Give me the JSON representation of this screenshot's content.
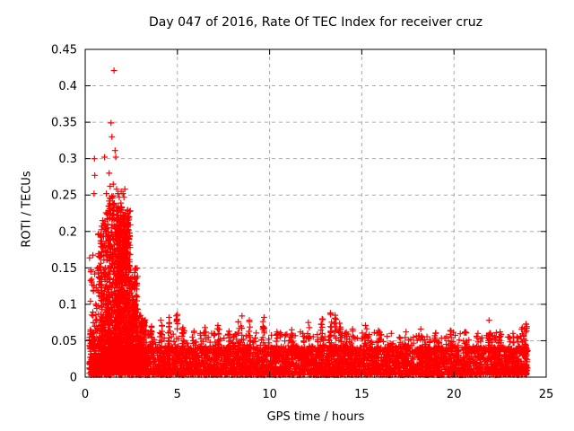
{
  "chart_data": {
    "type": "scatter",
    "title": "Day 047 of 2016, Rate Of TEC Index for receiver cruz",
    "xlabel": "GPS time / hours",
    "ylabel": "ROTI / TECUs",
    "xlim": [
      0,
      25
    ],
    "ylim": [
      0,
      0.45
    ],
    "xticks": [
      0,
      5,
      10,
      15,
      20,
      25
    ],
    "xtick_labels": [
      "0",
      "5",
      "10",
      "15",
      "20",
      "25"
    ],
    "yticks": [
      0,
      0.05,
      0.1,
      0.15,
      0.2,
      0.25,
      0.3,
      0.35,
      0.4,
      0.45
    ],
    "ytick_labels": [
      "0",
      "0.05",
      "0.1",
      "0.15",
      "0.2",
      "0.25",
      "0.3",
      "0.35",
      "0.4",
      "0.45"
    ],
    "grid": {
      "visible": true,
      "style": "dashed",
      "color": "#aaaaaa"
    },
    "marker": {
      "shape": "plus",
      "color": "#ff0000",
      "size": 7
    },
    "legend": null,
    "description": "Dense ROTI time series: quiet baseline 0-0.05 TECU across all 24 hours; strong ionospheric disturbance burst between ~0.7 and 3.2 h reaching 0.42 TECU; intermittent small spikes of 0.05-0.09 TECU through the rest of the day; data span ~0.2-24.0 h.",
    "generation": {
      "seed": 47,
      "baseline": {
        "x0": 0.22,
        "x1": 24.0,
        "y0": 0.003,
        "y1": 0.042,
        "n": 3800,
        "bias": 1.5
      },
      "bands": [
        {
          "x0": 0.22,
          "x1": 24.0,
          "y0": 0.035,
          "y1": 0.062,
          "n": 550,
          "bias": 2.0
        }
      ],
      "burst_segments": [
        {
          "x0": 0.22,
          "x1": 0.7,
          "y0": 0.01,
          "y1": 0.175,
          "n": 90,
          "bias": 2.6
        },
        {
          "x0": 0.7,
          "x1": 1.1,
          "y0": 0.01,
          "y1": 0.215,
          "n": 260,
          "bias": 2.2
        },
        {
          "x0": 1.1,
          "x1": 1.55,
          "y0": 0.01,
          "y1": 0.25,
          "n": 380,
          "bias": 2.2
        },
        {
          "x0": 1.55,
          "x1": 2.05,
          "y0": 0.01,
          "y1": 0.24,
          "n": 520,
          "bias": 2.0
        },
        {
          "x0": 2.05,
          "x1": 2.45,
          "y0": 0.01,
          "y1": 0.23,
          "n": 420,
          "bias": 2.2
        },
        {
          "x0": 2.45,
          "x1": 2.85,
          "y0": 0.01,
          "y1": 0.15,
          "n": 280,
          "bias": 2.2
        },
        {
          "x0": 2.85,
          "x1": 3.3,
          "y0": 0.01,
          "y1": 0.085,
          "n": 200,
          "bias": 1.8
        },
        {
          "x0": 1.8,
          "x1": 2.3,
          "y0": 0.13,
          "y1": 0.225,
          "n": 160,
          "bias": 1.2
        }
      ],
      "spikes": [
        [
          3.6,
          0.07,
          12
        ],
        [
          4.1,
          0.078,
          14
        ],
        [
          4.55,
          0.082,
          14
        ],
        [
          5.0,
          0.086,
          16
        ],
        [
          5.3,
          0.068,
          10
        ],
        [
          5.9,
          0.063,
          8
        ],
        [
          6.5,
          0.068,
          10
        ],
        [
          7.2,
          0.071,
          12
        ],
        [
          7.8,
          0.063,
          8
        ],
        [
          8.3,
          0.076,
          12
        ],
        [
          8.5,
          0.084,
          10
        ],
        [
          8.9,
          0.078,
          10
        ],
        [
          9.7,
          0.082,
          12
        ],
        [
          10.4,
          0.062,
          8
        ],
        [
          11.2,
          0.065,
          8
        ],
        [
          11.8,
          0.06,
          6
        ],
        [
          12.1,
          0.075,
          10
        ],
        [
          12.85,
          0.08,
          12
        ],
        [
          13.3,
          0.088,
          16
        ],
        [
          13.55,
          0.085,
          14
        ],
        [
          13.8,
          0.074,
          10
        ],
        [
          14.1,
          0.06,
          6
        ],
        [
          14.5,
          0.066,
          8
        ],
        [
          15.2,
          0.071,
          10
        ],
        [
          15.9,
          0.064,
          8
        ],
        [
          16.6,
          0.06,
          6
        ],
        [
          17.4,
          0.062,
          8
        ],
        [
          18.2,
          0.066,
          8
        ],
        [
          19.0,
          0.06,
          6
        ],
        [
          19.8,
          0.064,
          8
        ],
        [
          20.6,
          0.062,
          6
        ],
        [
          21.3,
          0.06,
          6
        ],
        [
          21.9,
          0.078,
          14
        ],
        [
          22.5,
          0.062,
          8
        ],
        [
          23.2,
          0.06,
          6
        ],
        [
          23.7,
          0.068,
          12
        ],
        [
          23.9,
          0.073,
          14
        ]
      ],
      "outliers": [
        [
          1.56,
          0.421
        ],
        [
          1.4,
          0.349
        ],
        [
          1.45,
          0.33
        ],
        [
          1.62,
          0.311
        ],
        [
          1.66,
          0.302
        ],
        [
          1.05,
          0.302
        ],
        [
          0.5,
          0.3
        ],
        [
          0.52,
          0.277
        ],
        [
          0.48,
          0.252
        ],
        [
          1.15,
          0.252
        ],
        [
          1.3,
          0.28
        ],
        [
          1.35,
          0.262
        ],
        [
          1.52,
          0.265
        ],
        [
          1.7,
          0.258
        ],
        [
          1.78,
          0.252
        ],
        [
          1.85,
          0.247
        ],
        [
          1.95,
          0.255
        ],
        [
          2.05,
          0.252
        ],
        [
          2.1,
          0.247
        ],
        [
          2.15,
          0.258
        ],
        [
          1.25,
          0.225
        ],
        [
          1.2,
          0.205
        ],
        [
          0.95,
          0.215
        ]
      ]
    }
  }
}
